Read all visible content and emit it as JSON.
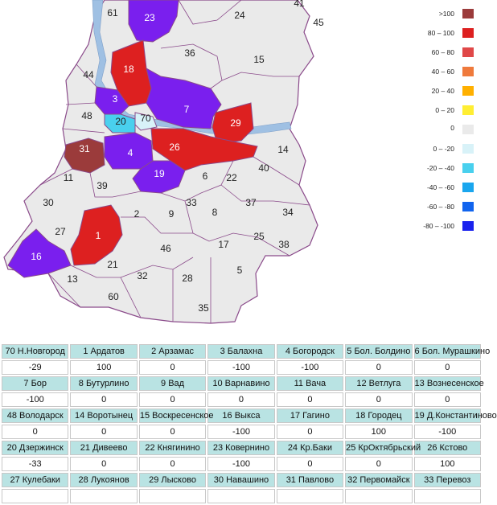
{
  "colors": {
    "gt100": "#9b3b3b",
    "r80_100": "#dd2020",
    "r60_80": "#e04848",
    "r40_60": "#ef7a3c",
    "r20_40": "#ffb000",
    "r0_20": "#ffee33",
    "zero": "#eaeaea",
    "n0_20": "#d8f2f8",
    "n20_40": "#49d0ee",
    "n40_60": "#1aa6ee",
    "n60_80": "#1164ee",
    "n80_100": "#1a22ee",
    "lt_100": "#7a1fee",
    "border": "#8a4a8a"
  },
  "legend": [
    {
      "label": ">100",
      "color": "#9b3b3b"
    },
    {
      "label": "80 – 100",
      "color": "#dd2020"
    },
    {
      "label": "60 – 80",
      "color": "#e04848"
    },
    {
      "label": "40 – 60",
      "color": "#ef7a3c"
    },
    {
      "label": "20 – 40",
      "color": "#ffb000"
    },
    {
      "label": "0 – 20",
      "color": "#ffee33"
    },
    {
      "label": "0",
      "color": "#eaeaea"
    },
    {
      "label": "0 – -20",
      "color": "#d8f2f8"
    },
    {
      "label": "-20 – -40",
      "color": "#49d0ee"
    },
    {
      "label": "-40 – -60",
      "color": "#1aa6ee"
    },
    {
      "label": "-60 – -80",
      "color": "#1164ee"
    },
    {
      "label": "-80 – -100",
      "color": "#1a22ee"
    }
  ],
  "map_labels": [
    "61",
    "23",
    "24",
    "41",
    "45",
    "36",
    "15",
    "18",
    "44",
    "3",
    "48",
    "7",
    "20",
    "70",
    "29",
    "31",
    "4",
    "26",
    "14",
    "40",
    "11",
    "19",
    "6",
    "22",
    "39",
    "30",
    "2",
    "33",
    "9",
    "8",
    "37",
    "34",
    "27",
    "1",
    "16",
    "46",
    "17",
    "25",
    "38",
    "21",
    "5",
    "13",
    "32",
    "28",
    "60",
    "35"
  ],
  "table_rows": [
    {
      "names": [
        "70 Н.Новгород",
        "1 Ардатов",
        "2 Арзамас",
        "3 Балахна",
        "4 Богородск",
        "5 Бол. Болдино",
        "6 Бол. Мурашкино"
      ],
      "values": [
        "-29",
        "100",
        "0",
        "-100",
        "-100",
        "0",
        "0"
      ]
    },
    {
      "names": [
        "7 Бор",
        "8 Бутурлино",
        "9 Вад",
        "10 Варнавино",
        "11 Вача",
        "12 Ветлуга",
        "13 Вознесенское"
      ],
      "values": [
        "-100",
        "0",
        "0",
        "0",
        "0",
        "0",
        "0"
      ]
    },
    {
      "names": [
        "48 Володарск",
        "14 Воротынец",
        "15 Воскресенское",
        "16 Выкса",
        "17 Гагино",
        "18 Городец",
        "19 Д.Константиново"
      ],
      "values": [
        "0",
        "0",
        "0",
        "-100",
        "0",
        "100",
        "-100"
      ]
    },
    {
      "names": [
        "20 Дзержинск",
        "21 Дивеево",
        "22 Княгинино",
        "23 Ковернино",
        "24 Кр.Баки",
        "25 КрОктябрьский",
        "26 Кстово"
      ],
      "values": [
        "-33",
        "0",
        "0",
        "-100",
        "0",
        "0",
        "100"
      ]
    },
    {
      "names": [
        "27 Кулебаки",
        "28 Лукоянов",
        "29 Лысково",
        "30 Навашино",
        "31 Павлово",
        "32 Первомайск",
        "33 Перевоз"
      ],
      "values": [
        "",
        "",
        "",
        "",
        "",
        "",
        ""
      ]
    }
  ]
}
